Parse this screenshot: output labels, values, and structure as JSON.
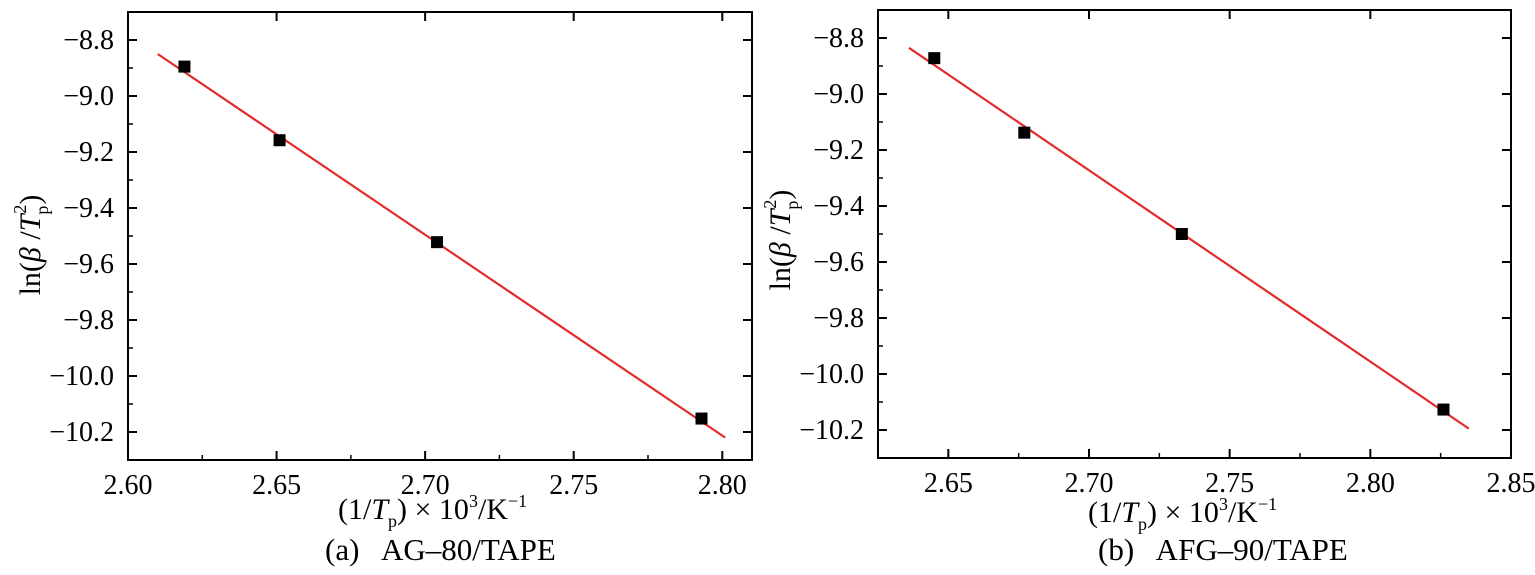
{
  "chart_data": [
    {
      "type": "scatter",
      "caption": "(a)   AG–80/TAPE",
      "ylabel_parts": [
        "ln(",
        "β",
        " /",
        "T",
        "p",
        "2",
        ")"
      ],
      "xlabel_parts": [
        "(1/",
        "T",
        "p",
        ")",
        " × 10",
        "3",
        "/K",
        "−1"
      ],
      "xlim": [
        2.6,
        2.81
      ],
      "ylim": [
        -10.3,
        -8.7
      ],
      "xticks": [
        2.6,
        2.65,
        2.7,
        2.75,
        2.8
      ],
      "xtick_labels": [
        "2.60",
        "2.65",
        "2.70",
        "2.75",
        "2.80"
      ],
      "yticks": [
        -8.8,
        -9.0,
        -9.2,
        -9.4,
        -9.6,
        -9.8,
        -10.0,
        -10.2
      ],
      "ytick_labels": [
        "−8.8",
        "−9.0",
        "−9.2",
        "−9.4",
        "−9.6",
        "−9.8",
        "−10.0",
        "−10.2"
      ],
      "points": [
        {
          "x": 2.619,
          "y": -8.895
        },
        {
          "x": 2.651,
          "y": -9.158
        },
        {
          "x": 2.704,
          "y": -9.522
        },
        {
          "x": 2.793,
          "y": -10.152
        }
      ],
      "fit_line": {
        "x_start": 2.61,
        "y_start": -8.85,
        "x_end": 2.801,
        "y_end": -10.22
      },
      "colors": {
        "fit": "#e32b2b",
        "points": "#000000",
        "frame": "#000000"
      }
    },
    {
      "type": "scatter",
      "caption": "(b)   AFG–90/TAPE",
      "ylabel_parts": [
        "ln(",
        "β",
        " /",
        "T",
        "p",
        "2",
        ")"
      ],
      "xlabel_parts": [
        "(1/",
        "T",
        "p",
        ")",
        " × 10",
        "3",
        "/K",
        "−1"
      ],
      "xlim": [
        2.625,
        2.85
      ],
      "ylim": [
        -10.3,
        -8.7
      ],
      "xticks": [
        2.65,
        2.7,
        2.75,
        2.8,
        2.85
      ],
      "xtick_labels": [
        "2.65",
        "2.70",
        "2.75",
        "2.80",
        "2.85"
      ],
      "yticks": [
        -8.8,
        -9.0,
        -9.2,
        -9.4,
        -9.6,
        -9.8,
        -10.0,
        -10.2
      ],
      "ytick_labels": [
        "−8.8",
        "−9.0",
        "−9.2",
        "−9.4",
        "−9.6",
        "−9.8",
        "−10.0",
        "−10.2"
      ],
      "points": [
        {
          "x": 2.645,
          "y": -8.872
        },
        {
          "x": 2.677,
          "y": -9.138
        },
        {
          "x": 2.733,
          "y": -9.5
        },
        {
          "x": 2.826,
          "y": -10.127
        }
      ],
      "fit_line": {
        "x_start": 2.636,
        "y_start": -8.835,
        "x_end": 2.835,
        "y_end": -10.195
      },
      "colors": {
        "fit": "#e32b2b",
        "points": "#000000",
        "frame": "#000000"
      }
    }
  ]
}
